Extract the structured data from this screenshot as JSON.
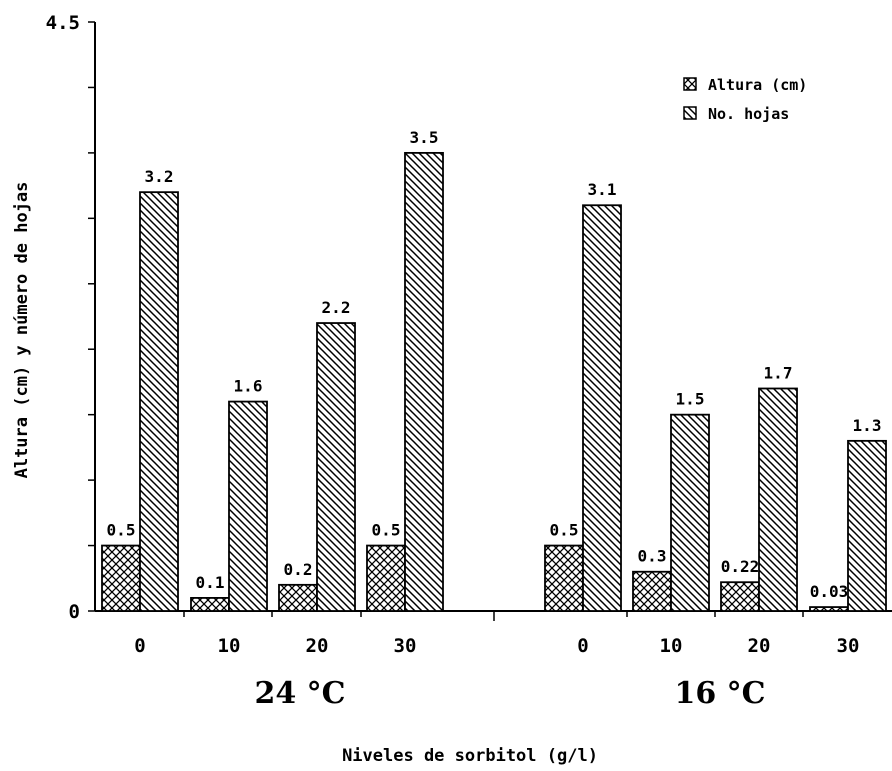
{
  "chart_data": {
    "type": "bar",
    "xlabel": "Niveles de sorbitol (g/l)",
    "ylabel": "Altura (cm) y número de hojas",
    "ylim": [
      0,
      4.5
    ],
    "y_ticks": [
      "0",
      "4.5"
    ],
    "groups": [
      {
        "label": "24 °C",
        "categories": [
          "0",
          "10",
          "20",
          "30"
        ],
        "series": [
          {
            "name": "Altura (cm)",
            "pattern": "crosshatch",
            "values": [
              0.5,
              0.1,
              0.2,
              0.5
            ],
            "labels": [
              "0.5",
              "0.1",
              "0.2",
              "0.5"
            ]
          },
          {
            "name": "No. hojas",
            "pattern": "diagonal",
            "values": [
              3.2,
              1.6,
              2.2,
              3.5
            ],
            "labels": [
              "3.2",
              "1.6",
              "2.2",
              "3.5"
            ]
          }
        ]
      },
      {
        "label": "16 °C",
        "categories": [
          "0",
          "10",
          "20",
          "30"
        ],
        "series": [
          {
            "name": "Altura (cm)",
            "pattern": "crosshatch",
            "values": [
              0.5,
              0.3,
              0.22,
              0.03
            ],
            "labels": [
              "0.5",
              "0.3",
              "0.22",
              "0.03"
            ]
          },
          {
            "name": "No. hojas",
            "pattern": "diagonal",
            "values": [
              3.1,
              1.5,
              1.7,
              1.3
            ],
            "labels": [
              "3.1",
              "1.5",
              "1.7",
              "1.3"
            ]
          }
        ]
      }
    ],
    "legend": {
      "placement": "top-right",
      "entries": [
        {
          "name": "Altura (cm)",
          "pattern": "crosshatch"
        },
        {
          "name": "No. hojas",
          "pattern": "diagonal"
        }
      ]
    },
    "grid": false,
    "colors": {
      "ink": "#000000",
      "background": "#ffffff"
    }
  }
}
